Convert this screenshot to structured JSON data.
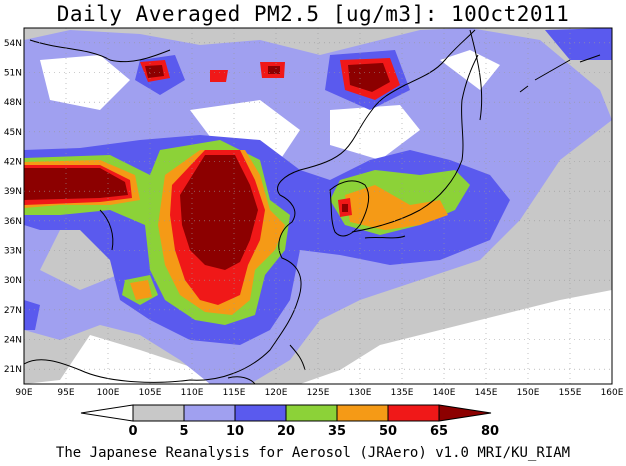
{
  "title": "Daily Averaged PM2.5 [ug/m3]: 10Oct2011",
  "footer": "The Japanese Reanalysis for Aerosol (JRAero) v1.0 MRI/KU_RIAM",
  "map": {
    "lon_range": [
      90,
      160
    ],
    "lat_range": [
      19.5,
      55.5
    ],
    "lon_ticks": [
      "90E",
      "95E",
      "100E",
      "105E",
      "110E",
      "115E",
      "120E",
      "125E",
      "130E",
      "135E",
      "140E",
      "145E",
      "150E",
      "155E",
      "160E"
    ],
    "lat_ticks": [
      "21N",
      "24N",
      "27N",
      "30N",
      "33N",
      "36N",
      "39N",
      "42N",
      "45N",
      "48N",
      "51N",
      "54N"
    ],
    "grid": "dotted"
  },
  "colorbar": {
    "levels": [
      "0",
      "5",
      "10",
      "20",
      "35",
      "50",
      "65",
      "80"
    ],
    "colors": [
      "#ffffff",
      "#c8c8c8",
      "#a0a0f0",
      "#5a5aee",
      "#8cd238",
      "#f59a16",
      "#f01818",
      "#8c0000"
    ]
  }
}
